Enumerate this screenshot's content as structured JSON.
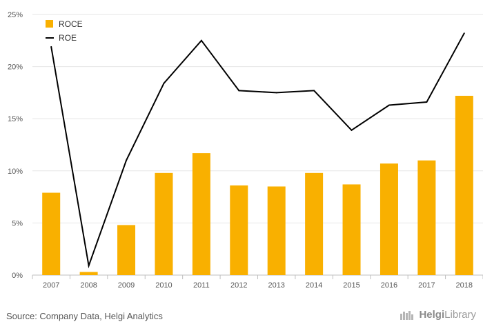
{
  "chart_data": {
    "type": "bar+line",
    "categories": [
      "2007",
      "2008",
      "2009",
      "2010",
      "2011",
      "2012",
      "2013",
      "2014",
      "2015",
      "2016",
      "2017",
      "2018"
    ],
    "series": [
      {
        "name": "ROCE",
        "type": "bar",
        "color": "#f9b000",
        "values": [
          7.9,
          0.3,
          4.8,
          9.8,
          11.7,
          8.6,
          8.5,
          9.8,
          8.7,
          10.7,
          11.0,
          17.2
        ]
      },
      {
        "name": "ROE",
        "type": "line",
        "color": "#000000",
        "values": [
          21.9,
          0.9,
          11.0,
          18.4,
          22.5,
          17.7,
          17.5,
          17.7,
          13.9,
          16.3,
          16.6,
          23.2
        ]
      }
    ],
    "ylim": [
      0,
      25
    ],
    "yticks": [
      "0%",
      "5%",
      "10%",
      "15%",
      "20%",
      "25%"
    ],
    "ytick_values": [
      0,
      5,
      10,
      15,
      20,
      25
    ],
    "grid": true,
    "legend_position": "top-left"
  },
  "footer": {
    "source": "Source: Company Data, Helgi Analytics",
    "brand_prefix": "Helgi",
    "brand_suffix": "Library"
  }
}
